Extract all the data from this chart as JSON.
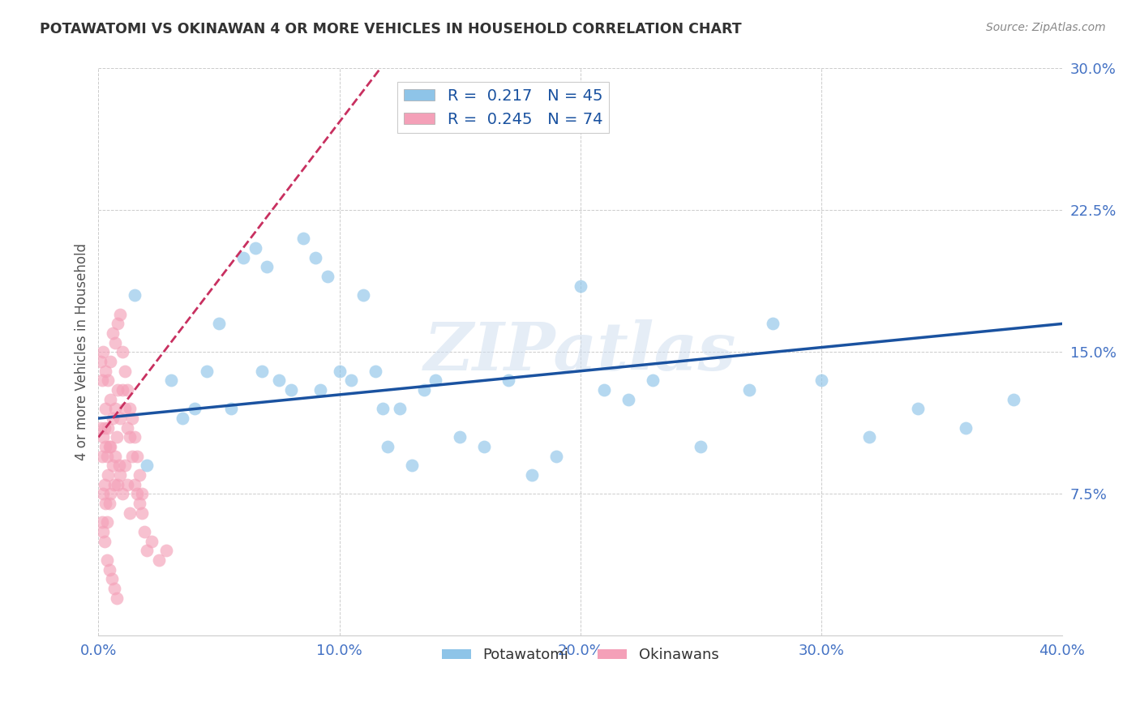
{
  "title": "POTAWATOMI VS OKINAWAN 4 OR MORE VEHICLES IN HOUSEHOLD CORRELATION CHART",
  "source": "Source: ZipAtlas.com",
  "ylabel": "4 or more Vehicles in Household",
  "x_tick_labels": [
    "0.0%",
    "10.0%",
    "20.0%",
    "30.0%",
    "40.0%"
  ],
  "x_tick_vals": [
    0.0,
    10.0,
    20.0,
    30.0,
    40.0
  ],
  "y_tick_labels": [
    "7.5%",
    "15.0%",
    "22.5%",
    "30.0%"
  ],
  "y_tick_vals": [
    7.5,
    15.0,
    22.5,
    30.0
  ],
  "xlim": [
    0.0,
    40.0
  ],
  "ylim": [
    0.0,
    30.0
  ],
  "R_potawatomi": 0.217,
  "N_potawatomi": 45,
  "R_okinawan": 0.245,
  "N_okinawan": 74,
  "color_blue": "#8ec4e8",
  "color_pink": "#f4a0b8",
  "trend_blue": "#1a52a0",
  "trend_pink": "#c83060",
  "watermark": "ZIPatlas",
  "background_color": "#ffffff",
  "potawatomi_x": [
    1.5,
    3.0,
    4.5,
    5.0,
    5.5,
    6.0,
    6.5,
    7.0,
    7.5,
    8.0,
    8.5,
    9.0,
    9.5,
    10.0,
    10.5,
    11.0,
    11.5,
    12.0,
    12.5,
    13.0,
    13.5,
    14.0,
    15.0,
    16.0,
    17.0,
    18.0,
    19.0,
    20.0,
    21.0,
    22.0,
    23.0,
    25.0,
    27.0,
    28.0,
    30.0,
    32.0,
    34.0,
    36.0,
    38.0,
    2.0,
    3.5,
    4.0,
    6.8,
    9.2,
    11.8
  ],
  "potawatomi_y": [
    18.0,
    13.5,
    14.0,
    16.5,
    12.0,
    20.0,
    20.5,
    19.5,
    13.5,
    13.0,
    21.0,
    20.0,
    19.0,
    14.0,
    13.5,
    18.0,
    14.0,
    10.0,
    12.0,
    9.0,
    13.0,
    13.5,
    10.5,
    10.0,
    13.5,
    8.5,
    9.5,
    18.5,
    13.0,
    12.5,
    13.5,
    10.0,
    13.0,
    16.5,
    13.5,
    10.5,
    12.0,
    11.0,
    12.5,
    9.0,
    11.5,
    12.0,
    14.0,
    13.0,
    12.0
  ],
  "okinawan_x": [
    0.1,
    0.1,
    0.15,
    0.15,
    0.2,
    0.2,
    0.2,
    0.25,
    0.25,
    0.3,
    0.3,
    0.3,
    0.35,
    0.35,
    0.4,
    0.4,
    0.45,
    0.45,
    0.5,
    0.5,
    0.5,
    0.6,
    0.6,
    0.65,
    0.7,
    0.7,
    0.75,
    0.8,
    0.8,
    0.85,
    0.9,
    0.9,
    1.0,
    1.0,
    1.1,
    1.1,
    1.2,
    1.2,
    1.3,
    1.3,
    1.4,
    1.5,
    1.6,
    1.7,
    1.8,
    1.9,
    2.0,
    2.2,
    2.5,
    2.8,
    0.2,
    0.3,
    0.4,
    0.5,
    0.6,
    0.7,
    0.8,
    0.9,
    1.0,
    1.1,
    1.2,
    1.3,
    1.4,
    1.5,
    1.6,
    1.7,
    1.8,
    0.15,
    0.25,
    0.35,
    0.45,
    0.55,
    0.65,
    0.75
  ],
  "okinawan_y": [
    14.5,
    11.0,
    13.5,
    9.5,
    10.5,
    7.5,
    5.5,
    11.0,
    8.0,
    12.0,
    10.0,
    7.0,
    9.5,
    6.0,
    11.0,
    8.5,
    10.0,
    7.0,
    12.5,
    10.0,
    7.5,
    11.5,
    9.0,
    8.0,
    12.0,
    9.5,
    10.5,
    13.0,
    8.0,
    9.0,
    11.5,
    8.5,
    13.0,
    7.5,
    12.0,
    9.0,
    11.0,
    8.0,
    10.5,
    6.5,
    9.5,
    8.0,
    7.5,
    7.0,
    6.5,
    5.5,
    4.5,
    5.0,
    4.0,
    4.5,
    15.0,
    14.0,
    13.5,
    14.5,
    16.0,
    15.5,
    16.5,
    17.0,
    15.0,
    14.0,
    13.0,
    12.0,
    11.5,
    10.5,
    9.5,
    8.5,
    7.5,
    6.0,
    5.0,
    4.0,
    3.5,
    3.0,
    2.5,
    2.0
  ],
  "trend_blue_x0": 0.0,
  "trend_blue_y0": 11.5,
  "trend_blue_x1": 40.0,
  "trend_blue_y1": 16.5,
  "trend_pink_x0": 0.0,
  "trend_pink_y0": 10.5,
  "trend_pink_x1": 12.0,
  "trend_pink_y1": 30.5
}
